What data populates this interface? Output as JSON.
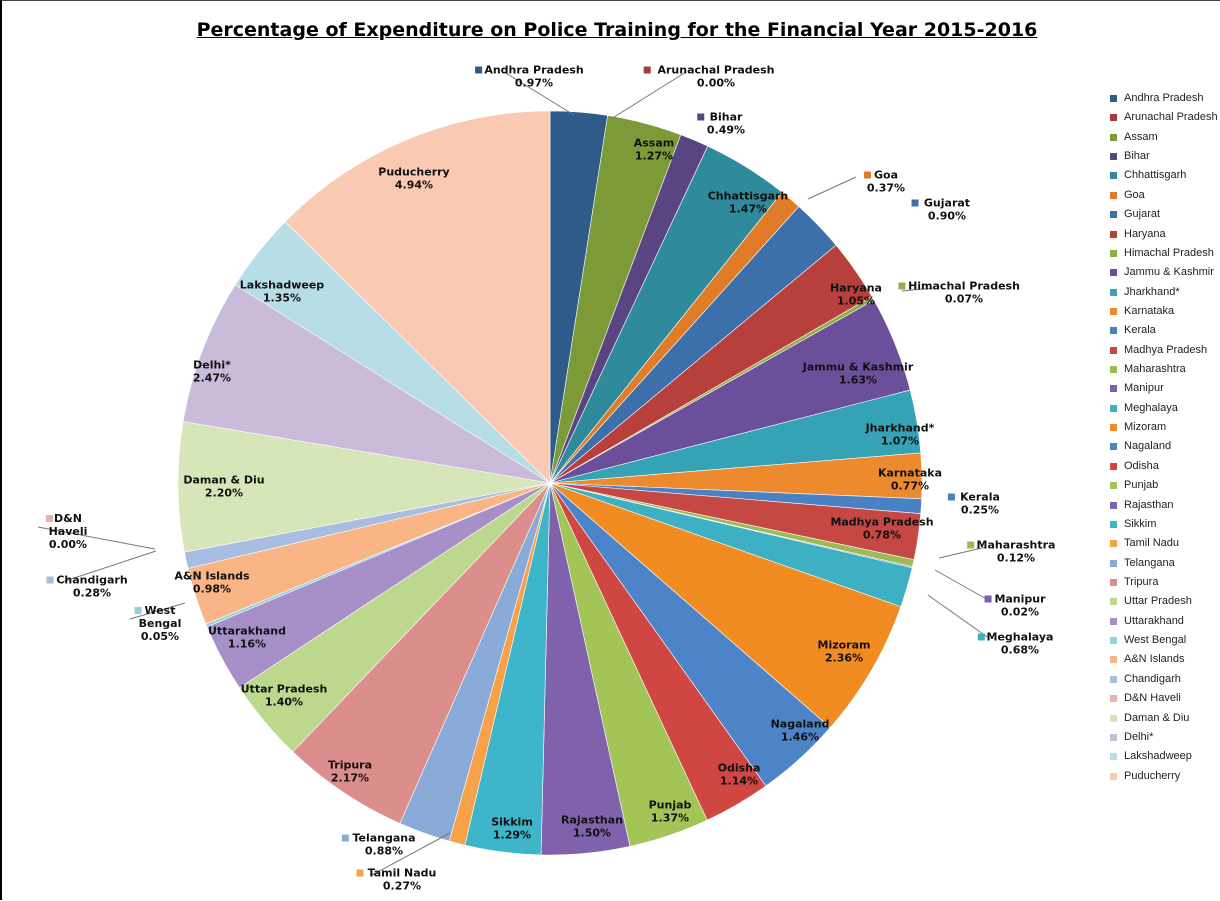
{
  "chart_data": {
    "type": "pie",
    "title": "Percentage of Expenditure on Police Training for the Financial Year 2015-2016",
    "slices": [
      {
        "label": "Andhra Pradesh",
        "value": 0.97,
        "value_label": "0.97%",
        "color": "#2e5b8a"
      },
      {
        "label": "Arunachal  Pradesh",
        "value": 0.0,
        "value_label": "0.00%",
        "color": "#a43c38"
      },
      {
        "label": "Assam",
        "value": 1.27,
        "value_label": "1.27%",
        "color": "#7c9a38"
      },
      {
        "label": "Bihar",
        "value": 0.49,
        "value_label": "0.49%",
        "color": "#5a4583"
      },
      {
        "label": "Chhattisgarh",
        "value": 1.47,
        "value_label": "1.47%",
        "color": "#2f8a9c"
      },
      {
        "label": "Goa",
        "value": 0.37,
        "value_label": "0.37%",
        "color": "#e07c28"
      },
      {
        "label": "Gujarat",
        "value": 0.9,
        "value_label": "0.90%",
        "color": "#3d6fab"
      },
      {
        "label": "Haryana",
        "value": 1.05,
        "value_label": "1.05%",
        "color": "#b8403c"
      },
      {
        "label": "Himachal Pradesh",
        "value": 0.07,
        "value_label": "0.07%",
        "color": "#8fae48"
      },
      {
        "label": "Jammu & Kashmir",
        "value": 1.63,
        "value_label": "1.63%",
        "color": "#6b4f9a"
      },
      {
        "label": "Jharkhand*",
        "value": 1.07,
        "value_label": "1.07%",
        "color": "#35a2b5"
      },
      {
        "label": "Karnataka",
        "value": 0.77,
        "value_label": "0.77%",
        "color": "#ee8a2e"
      },
      {
        "label": "Kerala",
        "value": 0.25,
        "value_label": "0.25%",
        "color": "#4a80c4"
      },
      {
        "label": "Madhya Pradesh",
        "value": 0.78,
        "value_label": "0.78%",
        "color": "#c64844"
      },
      {
        "label": "Maharashtra",
        "value": 0.12,
        "value_label": "0.12%",
        "color": "#9dbb55"
      },
      {
        "label": "Manipur",
        "value": 0.02,
        "value_label": "0.02%",
        "color": "#7b5fac"
      },
      {
        "label": "Meghalaya",
        "value": 0.68,
        "value_label": "0.68%",
        "color": "#3db0c4"
      },
      {
        "label": "Mizoram",
        "value": 2.36,
        "value_label": "2.36%",
        "color": "#f08c22"
      },
      {
        "label": "Nagaland",
        "value": 1.46,
        "value_label": "1.46%",
        "color": "#4d84c8"
      },
      {
        "label": "Odisha",
        "value": 1.14,
        "value_label": "1.14%",
        "color": "#cf4642"
      },
      {
        "label": "Punjab",
        "value": 1.37,
        "value_label": "1.37%",
        "color": "#a3c457"
      },
      {
        "label": "Rajasthan",
        "value": 1.5,
        "value_label": "1.50%",
        "color": "#8062ac"
      },
      {
        "label": "Sikkim",
        "value": 1.29,
        "value_label": "1.29%",
        "color": "#3fb5c9"
      },
      {
        "label": "Tamil Nadu",
        "value": 0.27,
        "value_label": "0.27%",
        "color": "#f7a24a"
      },
      {
        "label": "Telangana",
        "value": 0.88,
        "value_label": "0.88%",
        "color": "#8aaad8"
      },
      {
        "label": "Tripura",
        "value": 2.17,
        "value_label": "2.17%",
        "color": "#dc8e8c"
      },
      {
        "label": "Uttar Pradesh",
        "value": 1.4,
        "value_label": "1.40%",
        "color": "#bcd88e"
      },
      {
        "label": "Uttarakhand",
        "value": 1.16,
        "value_label": "1.16%",
        "color": "#a790c8"
      },
      {
        "label": "West Bengal",
        "value": 0.05,
        "value_label": "0.05%",
        "color": "#8fd1dd"
      },
      {
        "label": "A&N Islands",
        "value": 0.98,
        "value_label": "0.98%",
        "color": "#f9b585"
      },
      {
        "label": "Chandigarh",
        "value": 0.28,
        "value_label": "0.28%",
        "color": "#a9bde0"
      },
      {
        "label": "D&N Haveli",
        "value": 0.0,
        "value_label": "0.00%",
        "color": "#e8b0ae"
      },
      {
        "label": "Daman & Diu",
        "value": 2.2,
        "value_label": "2.20%",
        "color": "#d6e6b9"
      },
      {
        "label": "Delhi*",
        "value": 2.47,
        "value_label": "2.47%",
        "color": "#cbbbdb"
      },
      {
        "label": "Lakshadweep",
        "value": 1.35,
        "value_label": "1.35%",
        "color": "#b7dde7"
      },
      {
        "label": "Puducherry",
        "value": 4.94,
        "value_label": "4.94%",
        "color": "#f9c9b1"
      }
    ],
    "data_labels_placement": "mixed inside / outside",
    "legend": {
      "placement": "right",
      "entries": [
        "Andhra Pradesh",
        "Arunachal  Pradesh",
        "Assam",
        "Bihar",
        "Chhattisgarh",
        "Goa",
        "Gujarat",
        "Haryana",
        "Himachal Pradesh",
        "Jammu & Kashmir",
        "Jharkhand*",
        "Karnataka",
        "Kerala",
        "Madhya Pradesh",
        "Maharashtra",
        "Manipur",
        "Meghalaya",
        "Mizoram",
        "Nagaland",
        "Odisha",
        "Punjab",
        "Rajasthan",
        "Sikkim",
        "Tamil Nadu",
        "Telangana",
        "Tripura",
        "Uttar Pradesh",
        "Uttarakhand",
        "West Bengal",
        "A&N Islands",
        "Chandigarh",
        "D&N Haveli",
        "Daman & Diu",
        "Delhi*",
        "Lakshadweep",
        "Puducherry"
      ]
    }
  }
}
